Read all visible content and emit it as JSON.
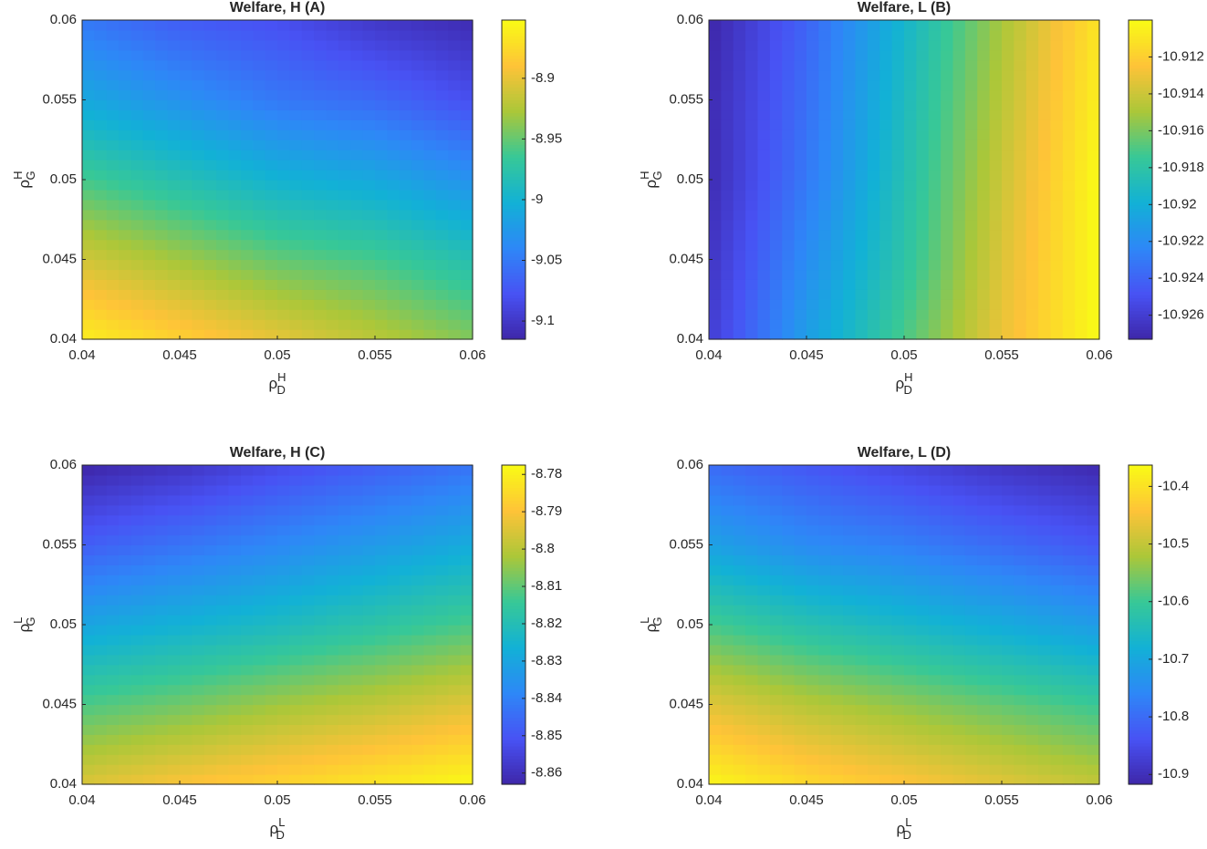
{
  "chart_data": [
    {
      "type": "contour",
      "title": "Welfare, H (A)",
      "colormap": "parula",
      "xlabel": {
        "symbol": "ρ",
        "sup": "H",
        "sub": "D"
      },
      "ylabel": {
        "symbol": "ρ",
        "sup": "H",
        "sub": "G"
      },
      "x": [
        0.04,
        0.045,
        0.05,
        0.055,
        0.06
      ],
      "y": [
        0.04,
        0.045,
        0.05,
        0.055,
        0.06
      ],
      "z": [
        [
          -8.86,
          -8.88,
          -8.9,
          -8.92,
          -8.94
        ],
        [
          -8.91,
          -8.93,
          -8.95,
          -8.96,
          -8.98
        ],
        [
          -8.96,
          -8.98,
          -9.0,
          -9.01,
          -9.03
        ],
        [
          -9.01,
          -9.03,
          -9.05,
          -9.06,
          -9.08
        ],
        [
          -9.05,
          -9.07,
          -9.08,
          -9.1,
          -9.11
        ]
      ],
      "xlim": [
        0.04,
        0.06
      ],
      "ylim": [
        0.04,
        0.06
      ],
      "xticks": [
        0.04,
        0.045,
        0.05,
        0.055,
        0.06
      ],
      "yticks": [
        0.04,
        0.045,
        0.05,
        0.055,
        0.06
      ],
      "zlim": [
        -9.115,
        -8.852
      ],
      "zticks": [
        -9.1,
        -9.05,
        -9,
        -8.95,
        -8.9
      ]
    },
    {
      "type": "contour",
      "title": "Welfare, L (B)",
      "colormap": "parula",
      "xlabel": {
        "symbol": "ρ",
        "sup": "H",
        "sub": "D"
      },
      "ylabel": {
        "symbol": "ρ",
        "sup": "H",
        "sub": "G"
      },
      "x": [
        0.04,
        0.045,
        0.05,
        0.055,
        0.06
      ],
      "y": [
        0.04,
        0.045,
        0.05,
        0.055,
        0.06
      ],
      "z": [
        [
          -10.926,
          -10.921,
          -10.917,
          -10.913,
          -10.91
        ],
        [
          -10.9265,
          -10.922,
          -10.918,
          -10.9135,
          -10.91
        ],
        [
          -10.927,
          -10.923,
          -10.9185,
          -10.914,
          -10.91
        ],
        [
          -10.927,
          -10.9235,
          -10.919,
          -10.9145,
          -10.9105
        ],
        [
          -10.9273,
          -10.924,
          -10.9195,
          -10.915,
          -10.911
        ]
      ],
      "xlim": [
        0.04,
        0.06
      ],
      "ylim": [
        0.04,
        0.06
      ],
      "xticks": [
        0.04,
        0.045,
        0.05,
        0.055,
        0.06
      ],
      "yticks": [
        0.04,
        0.045,
        0.05,
        0.055,
        0.06
      ],
      "zlim": [
        -10.9273,
        -10.91
      ],
      "zticks": [
        -10.926,
        -10.924,
        -10.922,
        -10.92,
        -10.918,
        -10.916,
        -10.914,
        -10.912
      ]
    },
    {
      "type": "contour",
      "title": "Welfare, H (C)",
      "colormap": "parula",
      "xlabel": {
        "symbol": "ρ",
        "sup": "L",
        "sub": "D"
      },
      "ylabel": {
        "symbol": "ρ",
        "sup": "L",
        "sub": "G"
      },
      "x": [
        0.04,
        0.045,
        0.05,
        0.055,
        0.06
      ],
      "y": [
        0.04,
        0.045,
        0.05,
        0.055,
        0.06
      ],
      "z": [
        [
          -8.795,
          -8.79,
          -8.786,
          -8.782,
          -8.778
        ],
        [
          -8.812,
          -8.808,
          -8.803,
          -8.799,
          -8.794
        ],
        [
          -8.83,
          -8.826,
          -8.822,
          -8.817,
          -8.812
        ],
        [
          -8.848,
          -8.843,
          -8.838,
          -8.833,
          -8.828
        ],
        [
          -8.863,
          -8.859,
          -8.853,
          -8.848,
          -8.843
        ]
      ],
      "xlim": [
        0.04,
        0.06
      ],
      "ylim": [
        0.04,
        0.06
      ],
      "xticks": [
        0.04,
        0.045,
        0.05,
        0.055,
        0.06
      ],
      "yticks": [
        0.04,
        0.045,
        0.05,
        0.055,
        0.06
      ],
      "zlim": [
        -8.863,
        -8.7775
      ],
      "zticks": [
        -8.86,
        -8.85,
        -8.84,
        -8.83,
        -8.82,
        -8.81,
        -8.8,
        -8.79,
        -8.78
      ]
    },
    {
      "type": "contour",
      "title": "Welfare, L (D)",
      "colormap": "parula",
      "xlabel": {
        "symbol": "ρ",
        "sup": "L",
        "sub": "D"
      },
      "ylabel": {
        "symbol": "ρ",
        "sup": "L",
        "sub": "G"
      },
      "x": [
        0.04,
        0.045,
        0.05,
        0.055,
        0.06
      ],
      "y": [
        0.04,
        0.045,
        0.05,
        0.055,
        0.06
      ],
      "z": [
        [
          -10.37,
          -10.41,
          -10.44,
          -10.47,
          -10.5
        ],
        [
          -10.47,
          -10.51,
          -10.54,
          -10.57,
          -10.6
        ],
        [
          -10.59,
          -10.63,
          -10.66,
          -10.69,
          -10.72
        ],
        [
          -10.71,
          -10.75,
          -10.77,
          -10.8,
          -10.83
        ],
        [
          -10.8,
          -10.83,
          -10.86,
          -10.89,
          -10.91
        ]
      ],
      "xlim": [
        0.04,
        0.06
      ],
      "ylim": [
        0.04,
        0.06
      ],
      "xticks": [
        0.04,
        0.045,
        0.05,
        0.055,
        0.06
      ],
      "yticks": [
        0.04,
        0.045,
        0.05,
        0.055,
        0.06
      ],
      "zlim": [
        -10.917,
        -10.363
      ],
      "zticks": [
        -10.9,
        -10.8,
        -10.7,
        -10.6,
        -10.5,
        -10.4
      ]
    }
  ]
}
